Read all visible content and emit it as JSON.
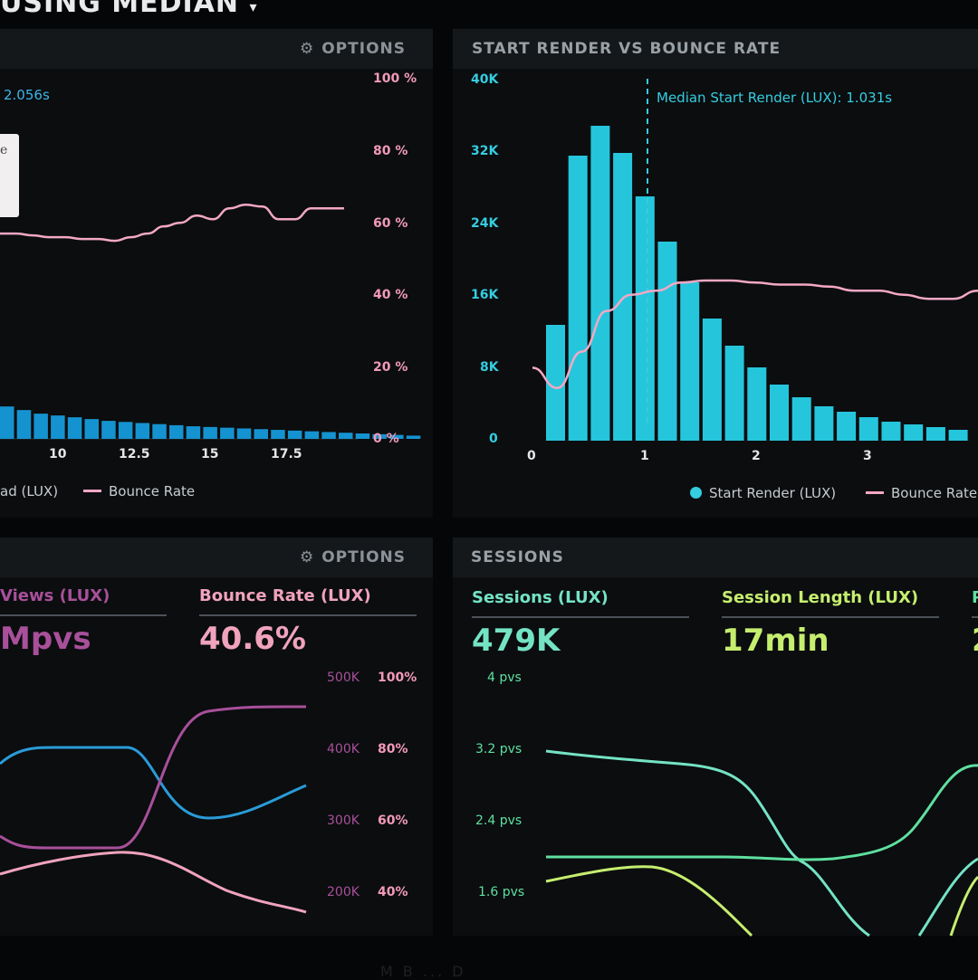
{
  "page_title": "USING MEDIAN",
  "page_title_caret": "▾",
  "panel_tl": {
    "options_label": "OPTIONS",
    "median_label": "2.056s",
    "tooltip_char": "e",
    "x_ticks": [
      "10",
      "12.5",
      "15",
      "17.5"
    ],
    "y_right_ticks": [
      "100 %",
      "80 %",
      "60 %",
      "40 %",
      "20 %",
      "0 %"
    ],
    "legend_left": "ad (LUX)",
    "legend_right": "Bounce Rate",
    "bars": [
      0.09,
      0.08,
      0.07,
      0.065,
      0.06,
      0.055,
      0.05,
      0.047,
      0.044,
      0.041,
      0.038,
      0.035,
      0.033,
      0.031,
      0.029,
      0.027,
      0.025,
      0.023,
      0.021,
      0.019,
      0.017,
      0.015,
      0.013,
      0.011,
      0.009
    ],
    "bounce_line": [
      0.57,
      0.57,
      0.565,
      0.56,
      0.56,
      0.555,
      0.555,
      0.55,
      0.56,
      0.57,
      0.59,
      0.6,
      0.62,
      0.61,
      0.64,
      0.65,
      0.645,
      0.61,
      0.61,
      0.64,
      0.64,
      0.64
    ]
  },
  "panel_tr": {
    "title": "START RENDER VS BOUNCE RATE",
    "median_label": "Median Start Render (LUX): 1.031s",
    "y_left_ticks": [
      "40K",
      "32K",
      "24K",
      "16K",
      "8K",
      "0"
    ],
    "x_ticks": [
      "0",
      "1",
      "2",
      "3"
    ],
    "legend_left": "Start Render (LUX)",
    "legend_right": "Bounce Rate",
    "bars_thousands": [
      12.8,
      31.5,
      34.8,
      31.8,
      27,
      22,
      17.5,
      13.5,
      10.5,
      8.1,
      6.2,
      4.8,
      3.8,
      3.2,
      2.6,
      2.1,
      1.8,
      1.5,
      1.2
    ],
    "bounce_line": [
      0.18,
      0.13,
      0.22,
      0.32,
      0.36,
      0.37,
      0.39,
      0.395,
      0.395,
      0.39,
      0.385,
      0.385,
      0.38,
      0.37,
      0.37,
      0.36,
      0.35,
      0.35,
      0.37
    ],
    "y_range": [
      0,
      40
    ]
  },
  "panel_bl": {
    "options_label": "OPTIONS",
    "stat1_label": "Views (LUX)",
    "stat1_value": "Mpvs",
    "stat2_label": "Bounce Rate (LUX)",
    "stat2_value": "40.6%",
    "y_mid_ticks": [
      "500K",
      "400K",
      "300K",
      "200K"
    ],
    "y_right_ticks": [
      "100%",
      "80%",
      "60%",
      "40%"
    ],
    "colors": {
      "blue": "#2a9bd8",
      "purple": "#a8509a",
      "pink": "#f0a3bc"
    }
  },
  "panel_br": {
    "title": "SESSIONS",
    "stat1_label": "Sessions (LUX)",
    "stat1_value": "479K",
    "stat2_label": "Session Length (LUX)",
    "stat2_value": "17min",
    "stat3_label_partial": "P",
    "stat3_value_partial": "2",
    "y_left_ticks": [
      "4 pvs",
      "3.2 pvs",
      "2.4 pvs",
      "1.6 pvs"
    ],
    "colors": {
      "teal": "#74e3c4",
      "green": "#5fe0a0",
      "lime": "#c6ee6e"
    }
  },
  "bottom_hint": "M B ... D"
}
